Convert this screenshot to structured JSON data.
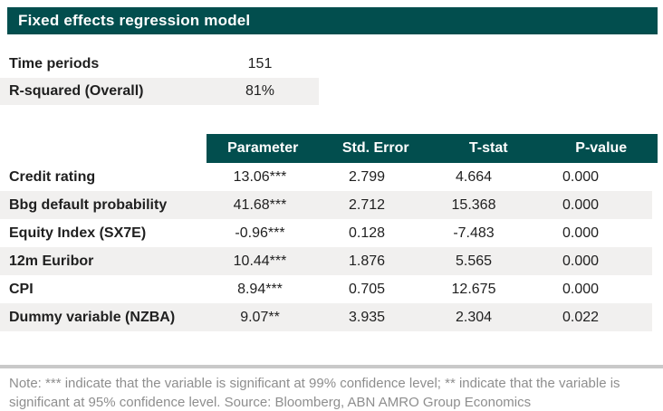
{
  "colors": {
    "header_teal": "#024e4e",
    "alt_row": "#f1f0ef",
    "note_gray": "#8e8e8e",
    "rule_gray": "#c9c9c9",
    "text": "#1f1f1f"
  },
  "chart_data": {
    "type": "table",
    "title": "Fixed effects regression model",
    "summary": [
      {
        "label": "Time periods",
        "value": "151"
      },
      {
        "label": "R-squared (Overall)",
        "value": "81%"
      }
    ],
    "columns": [
      "Parameter",
      "Std. Error",
      "T-stat",
      "P-value"
    ],
    "rows": [
      {
        "label": "Credit rating",
        "values": [
          "13.06***",
          "2.799",
          "4.664",
          "0.000"
        ]
      },
      {
        "label": "Bbg default probability",
        "values": [
          "41.68***",
          "2.712",
          "15.368",
          "0.000"
        ]
      },
      {
        "label": "Equity Index (SX7E)",
        "values": [
          "-0.96***",
          "0.128",
          "-7.483",
          "0.000"
        ]
      },
      {
        "label": "12m Euribor",
        "values": [
          "10.44***",
          "1.876",
          "5.565",
          "0.000"
        ]
      },
      {
        "label": "CPI",
        "values": [
          "8.94***",
          "0.705",
          "12.675",
          "0.000"
        ]
      },
      {
        "label": "Dummy variable (NZBA)",
        "values": [
          "9.07**",
          "3.935",
          "2.304",
          "0.022"
        ]
      }
    ],
    "note": "Note: *** indicate that the variable is significant at 99% confidence level; ** indicate that the variable is significant at 95% confidence level. Source: Bloomberg, ABN AMRO Group Economics"
  }
}
